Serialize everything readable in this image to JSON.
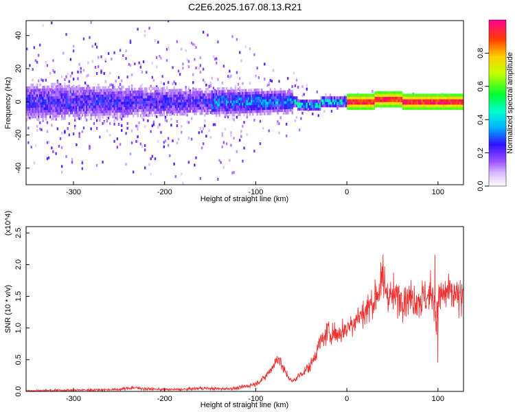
{
  "figure": {
    "title": "C2E6.2025.167.08.13.R21"
  },
  "chart_data": [
    {
      "type": "heatmap",
      "xlabel": "Height of straight line (km)",
      "ylabel": "Frequency (Hz)",
      "xlim": [
        -352,
        128
      ],
      "ylim": [
        -50,
        49
      ],
      "xticks": [
        -300,
        -200,
        -100,
        0,
        100
      ],
      "yticks": [
        -40,
        -20,
        0,
        20,
        40
      ],
      "colorbar": {
        "label": "Normalized spectral amplitude",
        "range": [
          0,
          1
        ],
        "ticks": [
          "0.0",
          "0.2",
          "0.4",
          "0.6",
          "0.8"
        ],
        "colors": [
          "#ffffff",
          "#9a50ff",
          "#3010ff",
          "#00b0ff",
          "#00ffd0",
          "#00ff30",
          "#c8ff00",
          "#ffd000",
          "#ff4000",
          "#ff0090"
        ]
      },
      "grid": false
    },
    {
      "type": "line",
      "series": [
        {
          "color": "#ee3333",
          "x": [
            -352,
            -300,
            -250,
            -235,
            -220,
            -200,
            -180,
            -160,
            -140,
            -120,
            -100,
            -90,
            -80,
            -75,
            -70,
            -60,
            -50,
            -40,
            -30,
            -20,
            -10,
            0,
            10,
            20,
            30,
            35,
            40,
            45,
            50,
            60,
            70,
            80,
            90,
            95,
            98,
            100,
            105,
            110,
            120,
            128
          ],
          "y": [
            0.01,
            0.02,
            0.03,
            0.06,
            0.04,
            0.03,
            0.03,
            0.05,
            0.04,
            0.05,
            0.12,
            0.22,
            0.42,
            0.55,
            0.35,
            0.15,
            0.28,
            0.4,
            0.75,
            0.95,
            0.9,
            1.0,
            1.15,
            1.25,
            1.45,
            1.6,
            1.75,
            1.55,
            1.48,
            1.5,
            1.48,
            1.45,
            1.5,
            1.55,
            1.1,
            1.45,
            1.52,
            1.55,
            1.5,
            1.45
          ]
        }
      ],
      "xlabel": "Height of straight line (km)",
      "ylabel": "SNR (10 * v/v)",
      "yunit": "(x10^4)",
      "xlim": [
        -352,
        128
      ],
      "ylim": [
        0,
        2.6
      ],
      "xticks": [
        -300,
        -200,
        -100,
        0,
        100
      ],
      "yticks": [
        "0.0",
        "0.5",
        "1.0",
        "1.5",
        "2.0",
        "2.5"
      ],
      "grid": false
    }
  ]
}
